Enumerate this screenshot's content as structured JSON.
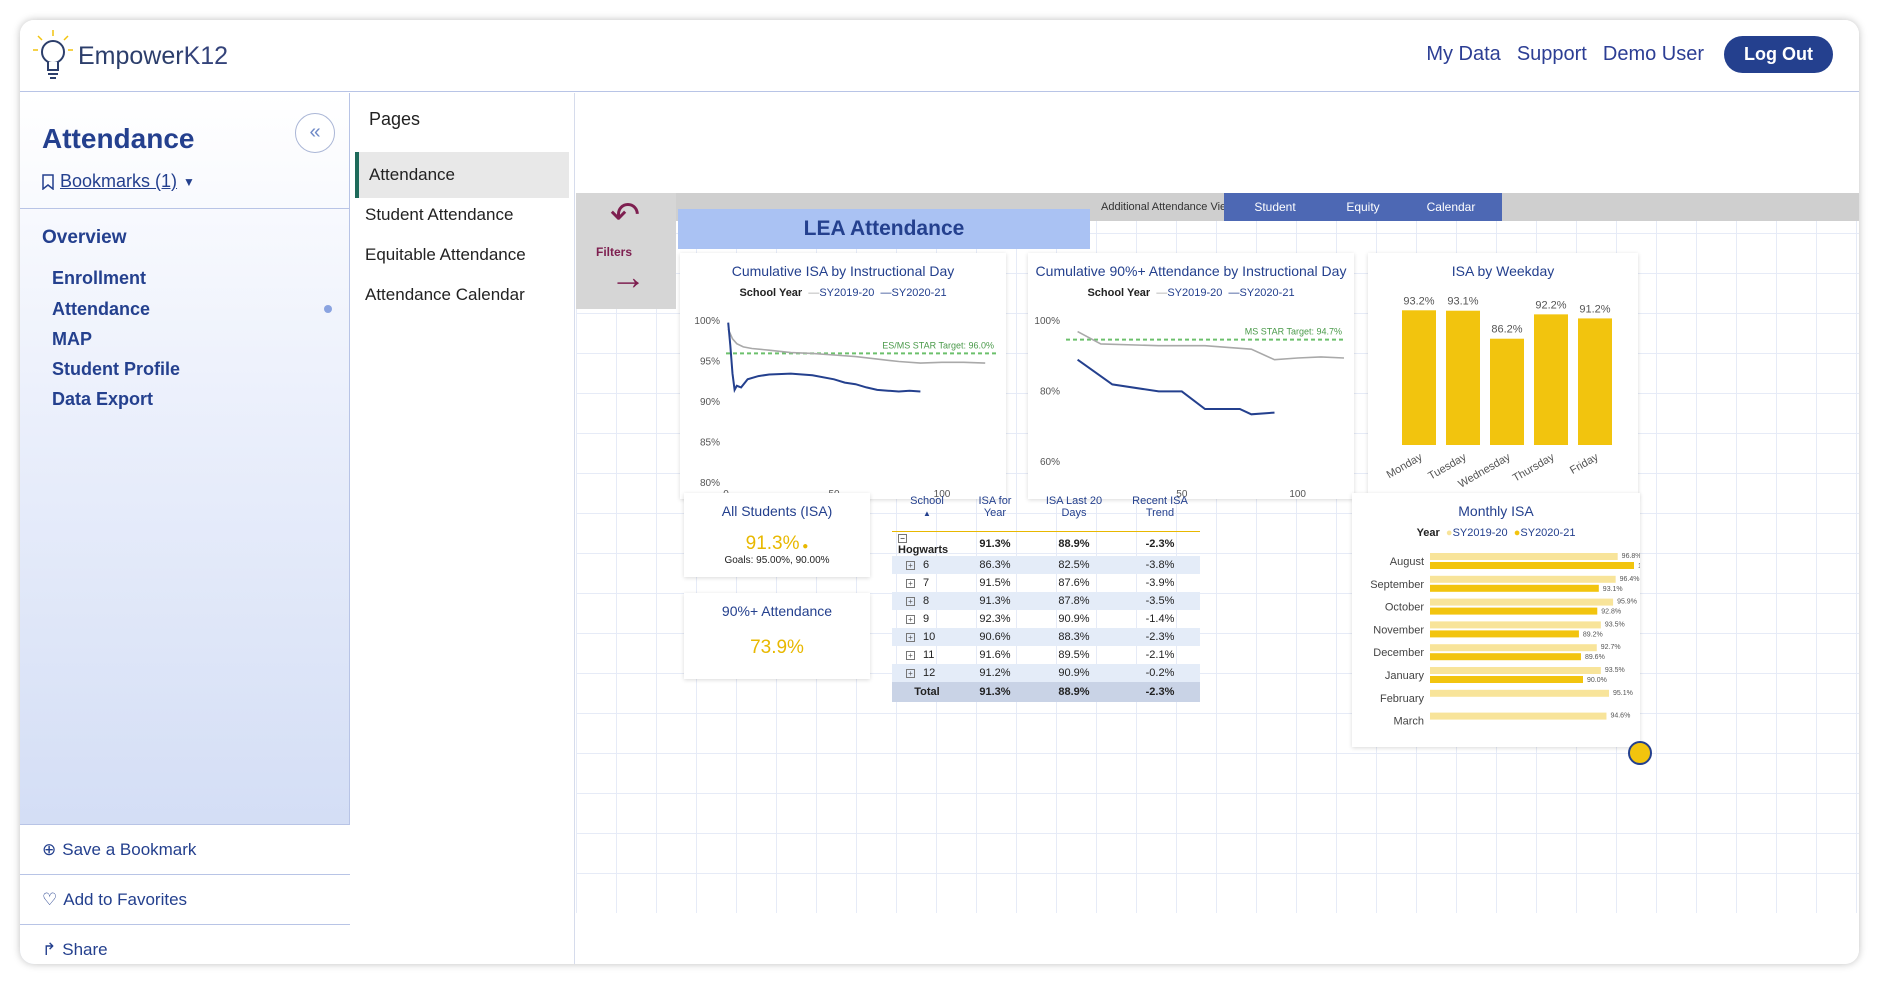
{
  "brand": {
    "name_pre": "Empower",
    "name_post": "K12"
  },
  "topnav": {
    "my_data": "My Data",
    "support": "Support",
    "user": "Demo User",
    "logout": "Log Out"
  },
  "sidebar": {
    "title": "Attendance",
    "collapse_icon": "double-chevron-left-icon",
    "bookmarks": "Bookmarks (1)",
    "overview": "Overview",
    "items": [
      {
        "label": "Enrollment"
      },
      {
        "label": "Attendance"
      },
      {
        "label": "MAP"
      },
      {
        "label": "Student Profile"
      },
      {
        "label": "Data Export"
      }
    ],
    "actions": {
      "save": "Save a Bookmark",
      "favorite": "Add to Favorites",
      "share": "Share"
    }
  },
  "pages": {
    "header": "Pages",
    "items": [
      {
        "label": "Attendance"
      },
      {
        "label": "Student Attendance"
      },
      {
        "label": "Equitable Attendance"
      },
      {
        "label": "Attendance Calendar"
      }
    ]
  },
  "report": {
    "views_label": "Additional Attendance Views:",
    "views": [
      {
        "label": "Student"
      },
      {
        "label": "Equity"
      },
      {
        "label": "Calendar"
      }
    ],
    "filters_label": "Filters",
    "title": "LEA Attendance",
    "colors": {
      "sy2019": "#a9a9a9",
      "sy2020": "#24408e",
      "target": "#6cc06c",
      "bar": "#f2c40e",
      "bar_light": "#f8e49a"
    }
  },
  "chart_data": [
    {
      "type": "line",
      "title": "Cumulative ISA by Instructional Day",
      "legend_title": "School Year",
      "ylim": [
        80,
        100
      ],
      "xlim": [
        0,
        125
      ],
      "yticks": [
        "100%",
        "95%",
        "90%",
        "85%",
        "80%"
      ],
      "xticks": [
        "0",
        "50",
        "100"
      ],
      "target": {
        "value": 96.0,
        "label": "ES/MS STAR Target: 96.0%"
      },
      "series": [
        {
          "name": "SY2019-20",
          "x": [
            1,
            3,
            5,
            8,
            12,
            20,
            30,
            40,
            50,
            60,
            70,
            80,
            90,
            100,
            110,
            120
          ],
          "y": [
            99.0,
            97.8,
            97.2,
            96.8,
            96.6,
            96.4,
            96.1,
            96.0,
            95.8,
            95.6,
            95.3,
            95.0,
            94.8,
            94.9,
            94.9,
            94.8
          ]
        },
        {
          "name": "SY2020-21",
          "x": [
            1,
            2,
            3,
            4,
            5,
            7,
            10,
            15,
            20,
            30,
            40,
            50,
            55,
            60,
            65,
            70,
            75,
            80,
            85,
            90
          ],
          "y": [
            99.8,
            97.0,
            93.5,
            91.5,
            92.0,
            91.8,
            92.8,
            93.2,
            93.4,
            93.5,
            93.3,
            92.8,
            92.4,
            92.2,
            91.8,
            91.5,
            91.4,
            91.3,
            91.4,
            91.3
          ]
        }
      ]
    },
    {
      "type": "line",
      "title": "Cumulative 90%+ Attendance by Instructional Day",
      "legend_title": "School Year",
      "ylim": [
        54,
        100
      ],
      "xlim": [
        0,
        120
      ],
      "yticks": [
        "100%",
        "80%",
        "60%"
      ],
      "xticks": [
        "50",
        "100"
      ],
      "target": {
        "value": 94.7,
        "label": "MS STAR Target: 94.7%"
      },
      "series": [
        {
          "name": "SY2019-20",
          "x": [
            5,
            15,
            40,
            60,
            80,
            90,
            100,
            110,
            120
          ],
          "y": [
            97,
            93.5,
            93,
            93,
            92,
            89,
            89.5,
            89.8,
            89.5
          ]
        },
        {
          "name": "SY2020-21",
          "x": [
            5,
            20,
            40,
            50,
            60,
            75,
            80,
            90
          ],
          "y": [
            89,
            82,
            80,
            80,
            75,
            75,
            73.5,
            74
          ]
        }
      ]
    },
    {
      "type": "bar",
      "title": "ISA by Weekday",
      "categories": [
        "Monday",
        "Tuesday",
        "Wednesday",
        "Thursday",
        "Friday"
      ],
      "values": [
        93.2,
        93.1,
        86.2,
        92.2,
        91.2
      ],
      "labels": [
        "93.2%",
        "93.1%",
        "86.2%",
        "92.2%",
        "91.2%"
      ],
      "ylim": [
        60,
        95
      ]
    },
    {
      "type": "bar",
      "orientation": "horizontal",
      "title": "Monthly ISA",
      "legend_title": "Year",
      "categories": [
        "August",
        "September",
        "October",
        "November",
        "December",
        "January",
        "February",
        "March"
      ],
      "xlim": [
        60,
        100
      ],
      "series": [
        {
          "name": "SY2019-20",
          "values": [
            96.8,
            96.4,
            95.9,
            93.5,
            92.7,
            93.5,
            95.1,
            94.6
          ],
          "labels": [
            "96.8%",
            "96.4%",
            "95.9%",
            "93.5%",
            "92.7%",
            "93.5%",
            "95.1%",
            "94.6%"
          ]
        },
        {
          "name": "SY2020-21",
          "values": [
            100.0,
            93.1,
            92.8,
            89.2,
            89.6,
            90.0,
            null,
            null
          ],
          "labels": [
            "100.0%",
            "93.1%",
            "92.8%",
            "89.2%",
            "89.6%",
            "90.0%",
            "",
            ""
          ]
        }
      ]
    }
  ],
  "kpis": {
    "all_students": {
      "title": "All Students (ISA)",
      "value": "91.3%",
      "goals": "Goals: 95.00%, 90.00%"
    },
    "ninety_plus": {
      "title": "90%+ Attendance",
      "value": "73.9%"
    }
  },
  "table": {
    "headers": [
      "School",
      "ISA for Year",
      "ISA Last 20 Days",
      "Recent ISA Trend"
    ],
    "rows": [
      {
        "school": "Hogwarts",
        "isa": "91.3%",
        "last20": "88.9%",
        "trend": "-2.3%",
        "kind": "hog"
      },
      {
        "school": "6",
        "isa": "86.3%",
        "last20": "82.5%",
        "trend": "-3.8%",
        "kind": "grade"
      },
      {
        "school": "7",
        "isa": "91.5%",
        "last20": "87.6%",
        "trend": "-3.9%",
        "kind": "grade"
      },
      {
        "school": "8",
        "isa": "91.3%",
        "last20": "87.8%",
        "trend": "-3.5%",
        "kind": "grade"
      },
      {
        "school": "9",
        "isa": "92.3%",
        "last20": "90.9%",
        "trend": "-1.4%",
        "kind": "grade"
      },
      {
        "school": "10",
        "isa": "90.6%",
        "last20": "88.3%",
        "trend": "-2.3%",
        "kind": "grade"
      },
      {
        "school": "11",
        "isa": "91.6%",
        "last20": "89.5%",
        "trend": "-2.1%",
        "kind": "grade"
      },
      {
        "school": "12",
        "isa": "91.2%",
        "last20": "90.9%",
        "trend": "-0.2%",
        "kind": "grade"
      },
      {
        "school": "Total",
        "isa": "91.3%",
        "last20": "88.9%",
        "trend": "-2.3%",
        "kind": "total"
      }
    ]
  }
}
